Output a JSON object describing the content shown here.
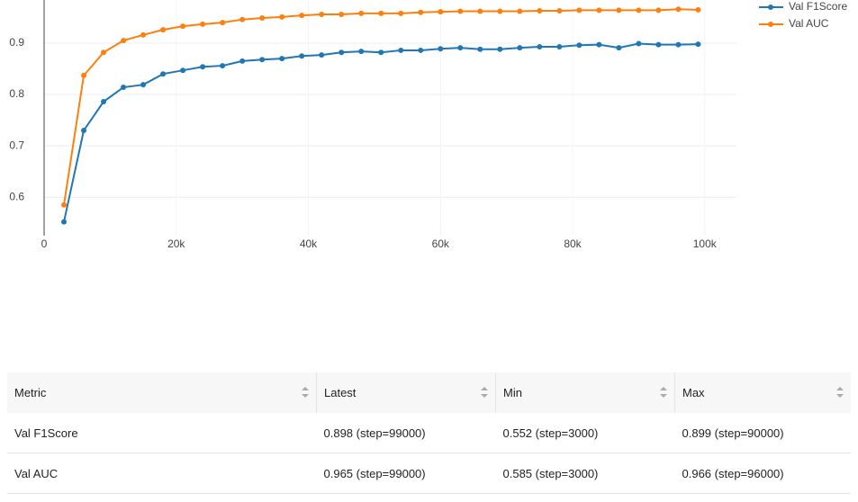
{
  "chart_data": {
    "type": "line",
    "x": [
      3000,
      6000,
      9000,
      12000,
      15000,
      18000,
      21000,
      24000,
      27000,
      30000,
      33000,
      36000,
      39000,
      42000,
      45000,
      48000,
      51000,
      54000,
      57000,
      60000,
      63000,
      66000,
      69000,
      72000,
      75000,
      78000,
      81000,
      84000,
      87000,
      90000,
      93000,
      96000,
      99000
    ],
    "series": [
      {
        "name": "Val F1Score",
        "color": "#1f77b4",
        "values": [
          0.552,
          0.73,
          0.786,
          0.814,
          0.819,
          0.84,
          0.847,
          0.854,
          0.856,
          0.865,
          0.868,
          0.87,
          0.875,
          0.877,
          0.882,
          0.884,
          0.882,
          0.886,
          0.886,
          0.889,
          0.891,
          0.888,
          0.888,
          0.891,
          0.893,
          0.893,
          0.896,
          0.897,
          0.891,
          0.899,
          0.897,
          0.897,
          0.898
        ]
      },
      {
        "name": "Val AUC",
        "color": "#ff7f0e",
        "values": [
          0.585,
          0.837,
          0.882,
          0.905,
          0.916,
          0.926,
          0.933,
          0.937,
          0.94,
          0.946,
          0.949,
          0.951,
          0.954,
          0.956,
          0.956,
          0.958,
          0.958,
          0.958,
          0.96,
          0.961,
          0.962,
          0.962,
          0.962,
          0.962,
          0.963,
          0.963,
          0.964,
          0.964,
          0.964,
          0.964,
          0.964,
          0.966,
          0.965
        ]
      }
    ],
    "xlim": [
      0,
      104800
    ],
    "ylim": [
      0.525,
      0.984
    ],
    "xticks": [
      0,
      {
        "value": 20000,
        "label": "20k"
      },
      {
        "value": 40000,
        "label": "40k"
      },
      {
        "value": 60000,
        "label": "60k"
      },
      {
        "value": 80000,
        "label": "80k"
      },
      {
        "value": 100000,
        "label": "100k"
      }
    ],
    "yticks": [
      0.6,
      0.7,
      0.8,
      0.9
    ],
    "grid": true,
    "legend": "right"
  },
  "table": {
    "columns": [
      "Metric",
      "Latest",
      "Min",
      "Max"
    ],
    "rows": [
      [
        "Val F1Score",
        "0.898 (step=99000)",
        "0.552 (step=3000)",
        "0.899 (step=90000)"
      ],
      [
        "Val AUC",
        "0.965 (step=99000)",
        "0.585 (step=3000)",
        "0.966 (step=96000)"
      ]
    ]
  }
}
